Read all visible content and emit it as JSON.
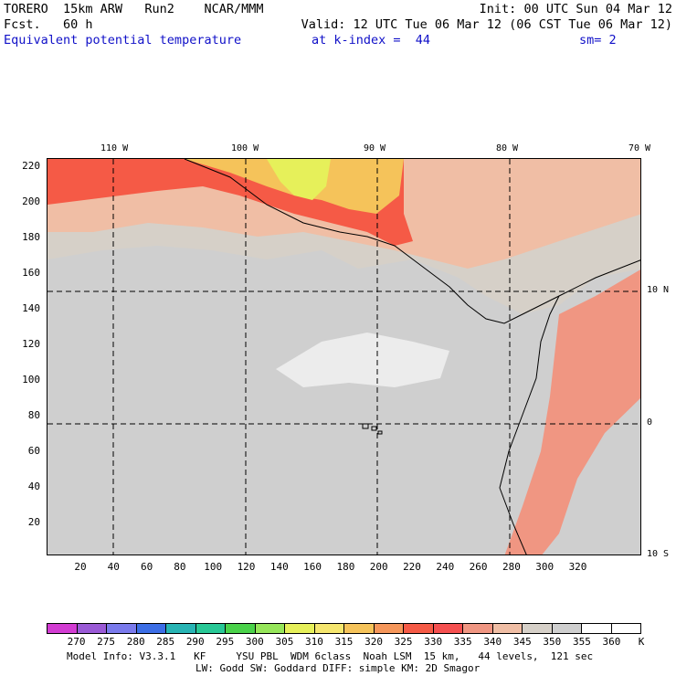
{
  "header": {
    "line1_left": "TORERO  15km ARW   Run2    NCAR/MMM",
    "line1_right": "Init: 00 UTC Sun 04 Mar 12",
    "line2_left": "Fcst.   60 h",
    "line2_right": "Valid: 12 UTC Tue 06 Mar 12 (06 CST Tue 06 Mar 12)",
    "field_title": "Equivalent potential temperature",
    "level": "at k-index =  44",
    "smoothing": "sm= 2"
  },
  "map": {
    "top_lon_labels": [
      "110 W",
      "100 W",
      "90 W",
      "80 W",
      "70 W"
    ],
    "right_lat_labels": [
      "10 N",
      "0",
      "10 S"
    ],
    "x_grid_ticks": [
      "20",
      "40",
      "60",
      "80",
      "100",
      "120",
      "140",
      "160",
      "180",
      "200",
      "220",
      "240",
      "260",
      "280",
      "300",
      "320"
    ],
    "y_grid_ticks": [
      "220",
      "200",
      "180",
      "160",
      "140",
      "120",
      "100",
      "80",
      "60",
      "40",
      "20"
    ]
  },
  "legend": {
    "units": "K",
    "labels": [
      "270",
      "275",
      "280",
      "285",
      "290",
      "295",
      "300",
      "305",
      "310",
      "315",
      "320",
      "325",
      "330",
      "335",
      "340",
      "345",
      "350",
      "355",
      "360"
    ],
    "colors": [
      "#d23cd2",
      "#9a5ad6",
      "#7a7aec",
      "#3c6ee6",
      "#28b4b4",
      "#28c896",
      "#4ad24a",
      "#96e65a",
      "#e6f05a",
      "#f5e66e",
      "#f5c35a",
      "#f5965a",
      "#f55a46",
      "#f55050",
      "#f09682",
      "#f0bea5",
      "#d6d0c8",
      "#cfcfcf",
      "#ffffff",
      "#ffffff"
    ]
  },
  "footer": {
    "line1": "Model Info: V3.3.1   KF     YSU PBL  WDM 6class  Noah LSM  15 km,   44 levels,  121 sec",
    "line2": "LW: Godd SW: Goddard DIFF: simple KM: 2D Smagor"
  }
}
